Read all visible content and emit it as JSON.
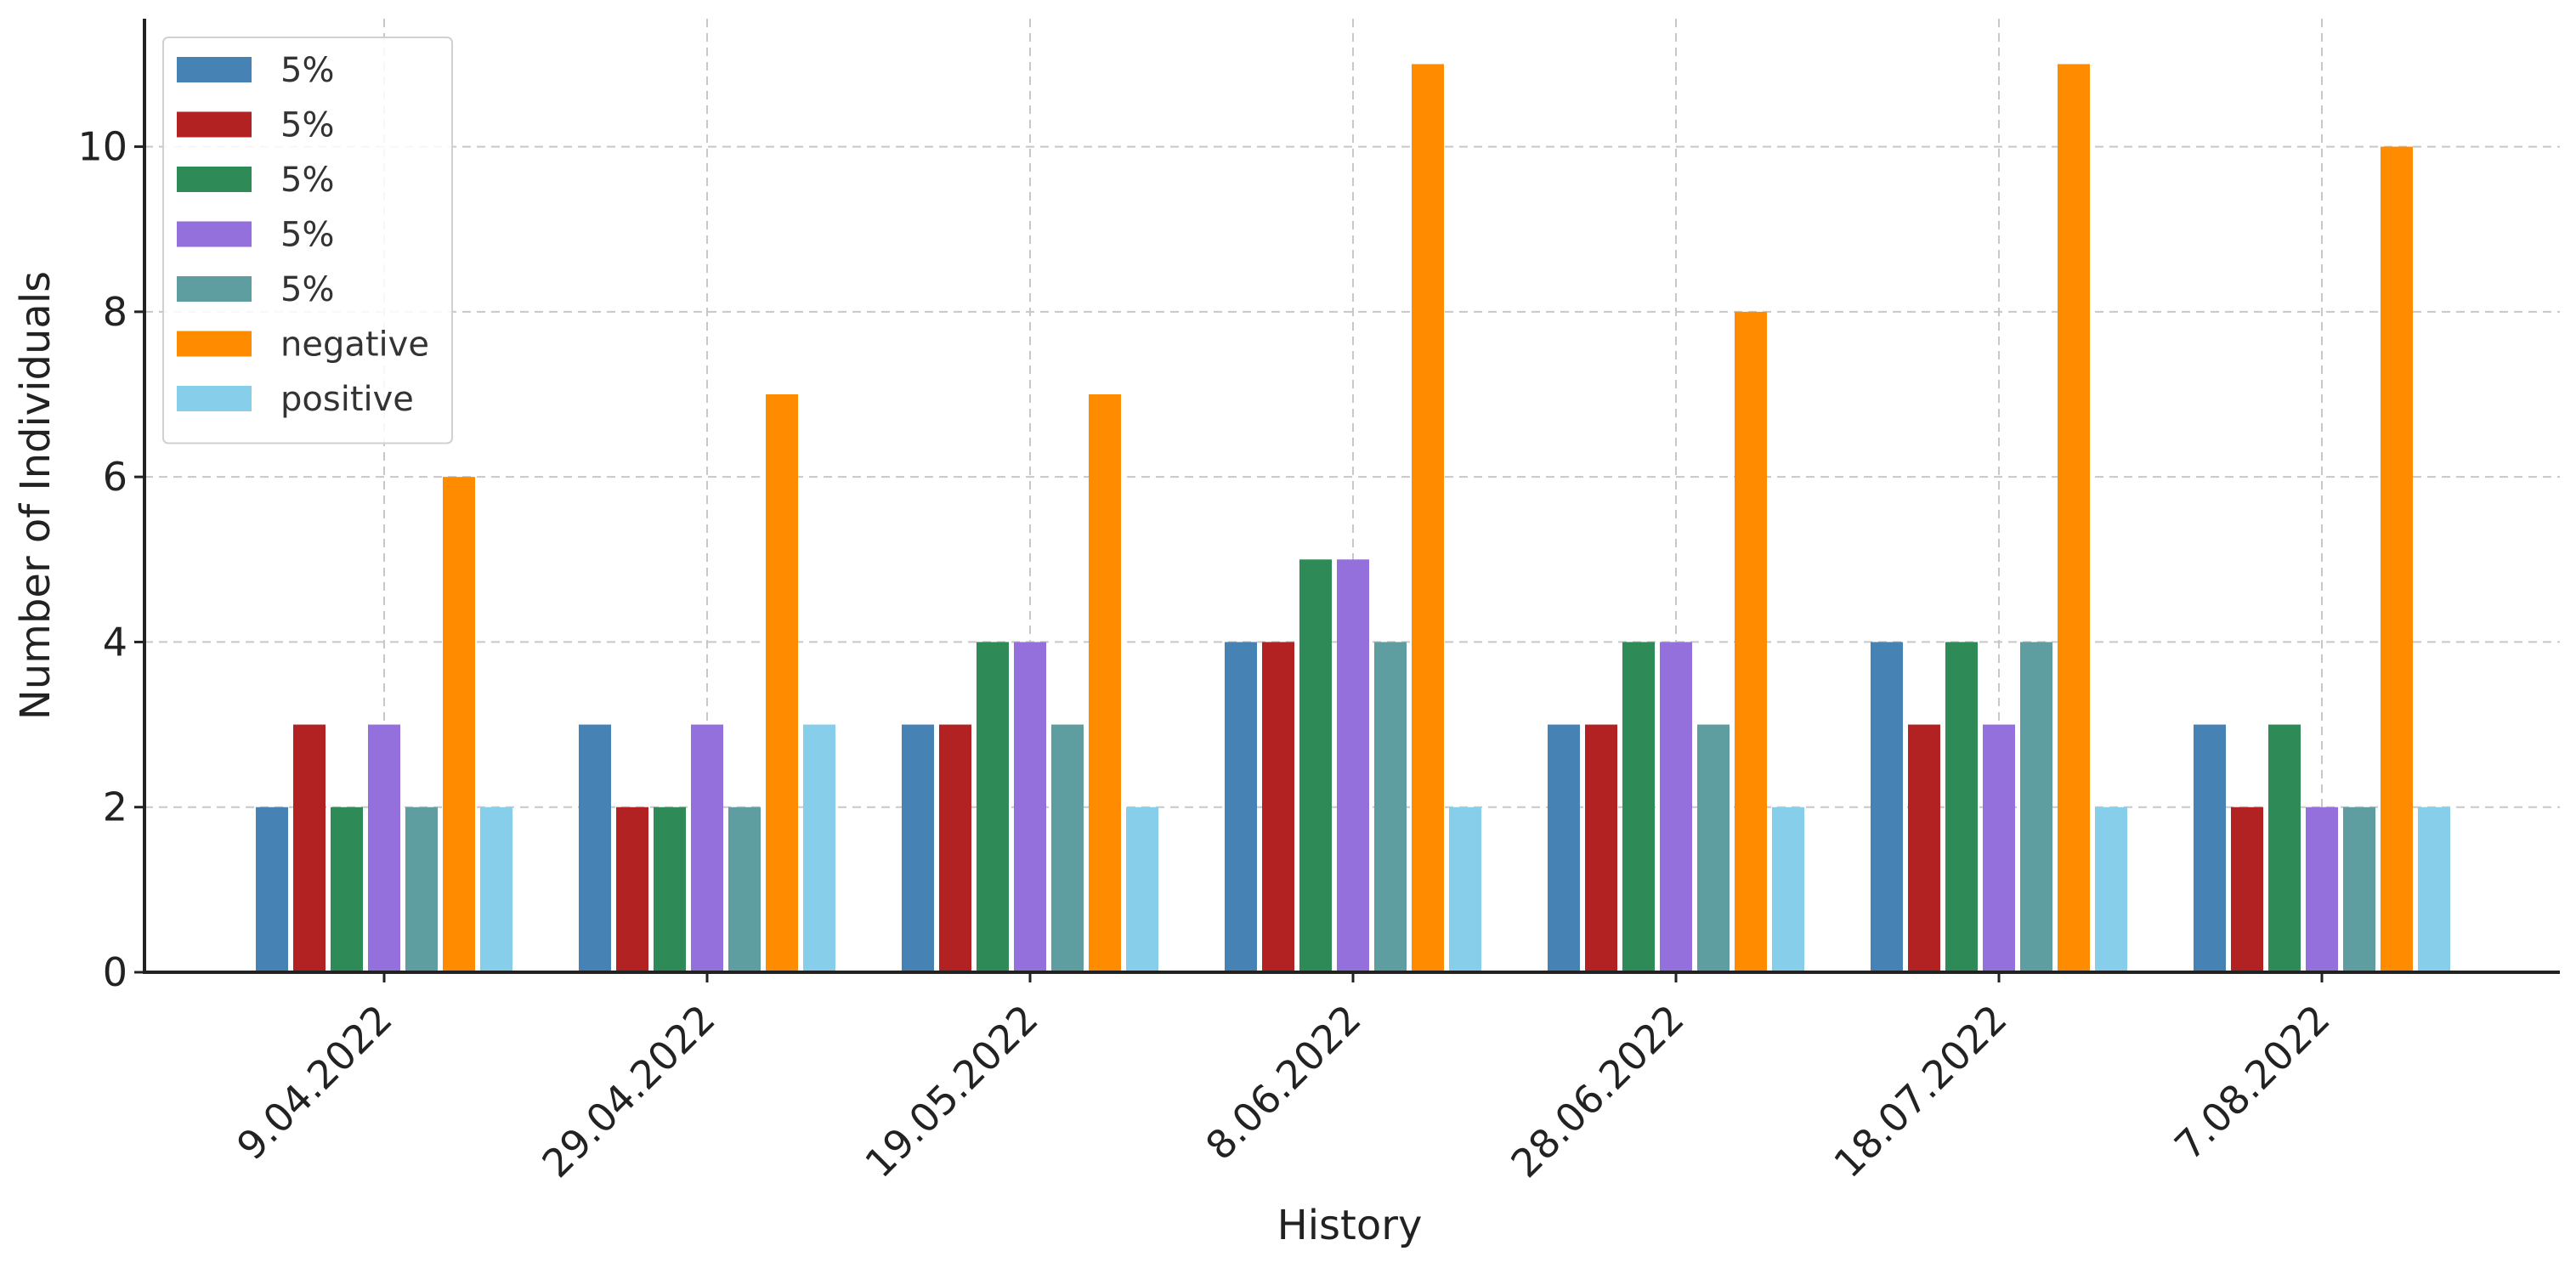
{
  "chart_data": {
    "type": "bar",
    "title": "",
    "xlabel": "History",
    "ylabel": "Number of Individuals",
    "categories": [
      "9.04.2022",
      "29.04.2022",
      "19.05.2022",
      "8.06.2022",
      "28.06.2022",
      "18.07.2022",
      "7.08.2022"
    ],
    "ylim": [
      0,
      11.55
    ],
    "yticks": [
      0,
      2,
      4,
      6,
      8,
      10
    ],
    "grid": true,
    "legend_position": "top-left",
    "series": [
      {
        "name": "5%",
        "color": "#4682b4",
        "values": [
          2,
          3,
          3,
          4,
          3,
          4,
          3
        ]
      },
      {
        "name": "5%",
        "color": "#b22222",
        "values": [
          3,
          2,
          3,
          4,
          3,
          3,
          2
        ]
      },
      {
        "name": "5%",
        "color": "#2e8b57",
        "values": [
          2,
          2,
          4,
          5,
          4,
          4,
          3
        ]
      },
      {
        "name": "5%",
        "color": "#9370db",
        "values": [
          3,
          3,
          4,
          5,
          4,
          3,
          2
        ]
      },
      {
        "name": "5%",
        "color": "#5f9ea0",
        "values": [
          2,
          2,
          3,
          4,
          3,
          4,
          2
        ]
      },
      {
        "name": "negative",
        "color": "#ff8c00",
        "values": [
          6,
          7,
          7,
          11,
          8,
          11,
          10
        ]
      },
      {
        "name": "positive",
        "color": "#87ceeb",
        "values": [
          2,
          3,
          2,
          2,
          2,
          2,
          2
        ]
      }
    ]
  }
}
